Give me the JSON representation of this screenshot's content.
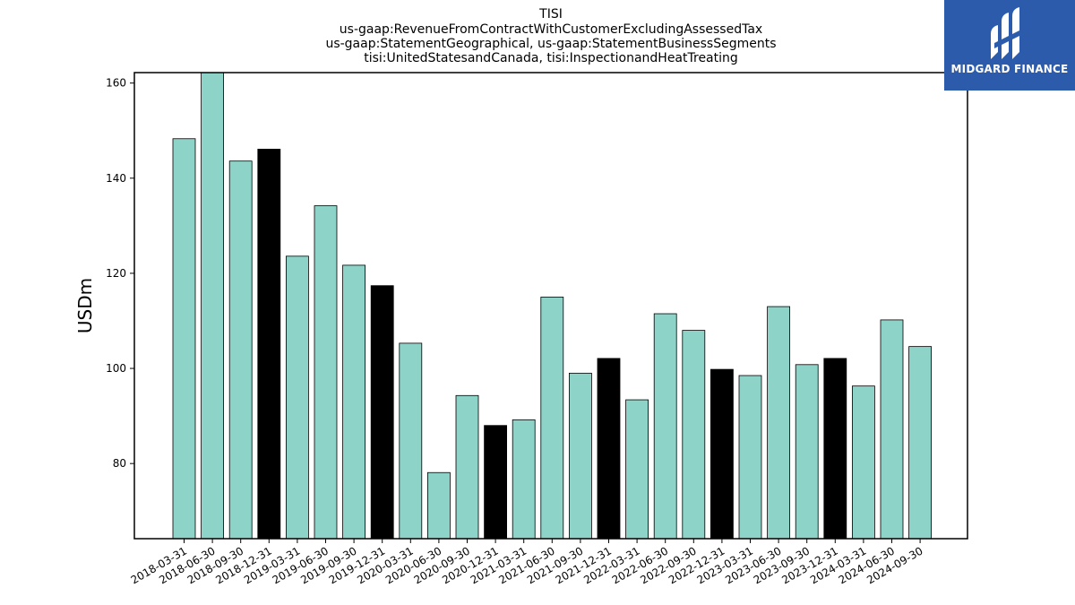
{
  "chart_data": {
    "type": "bar",
    "title_lines": [
      "TISI",
      "us-gaap:RevenueFromContractWithCustomerExcludingAssessedTax",
      "us-gaap:StatementGeographical, us-gaap:StatementBusinessSegments",
      "tisi:UnitedStatesandCanada, tisi:InspectionandHeatTreating"
    ],
    "ylabel": "USDm",
    "ylim": [
      64.2,
      162.2
    ],
    "yticks": [
      80,
      100,
      120,
      140,
      160
    ],
    "categories": [
      "2018-03-31",
      "2018-06-30",
      "2018-09-30",
      "2018-12-31",
      "2019-03-31",
      "2019-06-30",
      "2019-09-30",
      "2019-12-31",
      "2020-03-31",
      "2020-06-30",
      "2020-09-30",
      "2020-12-31",
      "2021-03-31",
      "2021-06-30",
      "2021-09-30",
      "2021-12-31",
      "2022-03-31",
      "2022-06-30",
      "2022-09-30",
      "2022-12-31",
      "2023-03-31",
      "2023-06-30",
      "2023-09-30",
      "2023-12-31",
      "2024-03-31",
      "2024-06-30",
      "2024-09-30"
    ],
    "values": [
      148.3,
      162.5,
      143.6,
      146.1,
      123.6,
      134.2,
      121.7,
      117.4,
      105.3,
      78.1,
      94.3,
      88.0,
      89.2,
      115.0,
      99.0,
      102.1,
      93.4,
      111.5,
      108.0,
      99.8,
      98.5,
      113.0,
      100.8,
      102.1,
      96.3,
      110.2,
      104.6
    ],
    "quarter_end_highlight": [
      false,
      false,
      false,
      true,
      false,
      false,
      false,
      true,
      false,
      false,
      false,
      true,
      false,
      false,
      false,
      true,
      false,
      false,
      false,
      true,
      false,
      false,
      false,
      true,
      false,
      false,
      false
    ],
    "colors": {
      "bar": "#8dd3c7",
      "highlight": "#000000",
      "edge": "#000000"
    },
    "grid": false,
    "legend": "none"
  },
  "logo": {
    "text": "MIDGARD FINANCE",
    "color": "#2d5bab"
  }
}
